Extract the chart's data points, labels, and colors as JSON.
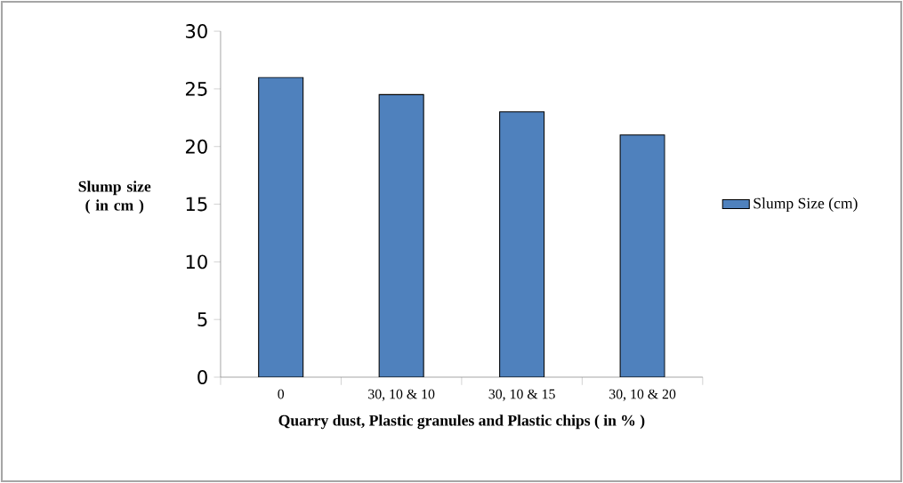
{
  "chart_data": {
    "type": "bar",
    "xlabel": "Quarry dust, Plastic granules and Plastic chips ( in % )",
    "ylabel": "Slump size ( in cm )",
    "categories": [
      "0",
      "30, 10 & 10",
      "30, 10 & 15",
      "30, 10 & 20"
    ],
    "series": [
      {
        "name": "Slump Size (cm)",
        "color": "#4f81bd",
        "values": [
          26,
          24.5,
          23,
          21
        ]
      }
    ],
    "ylim": [
      0,
      30
    ],
    "yticks": [
      0,
      5,
      10,
      15,
      20,
      25,
      30
    ],
    "grid": false,
    "legend": "right"
  }
}
